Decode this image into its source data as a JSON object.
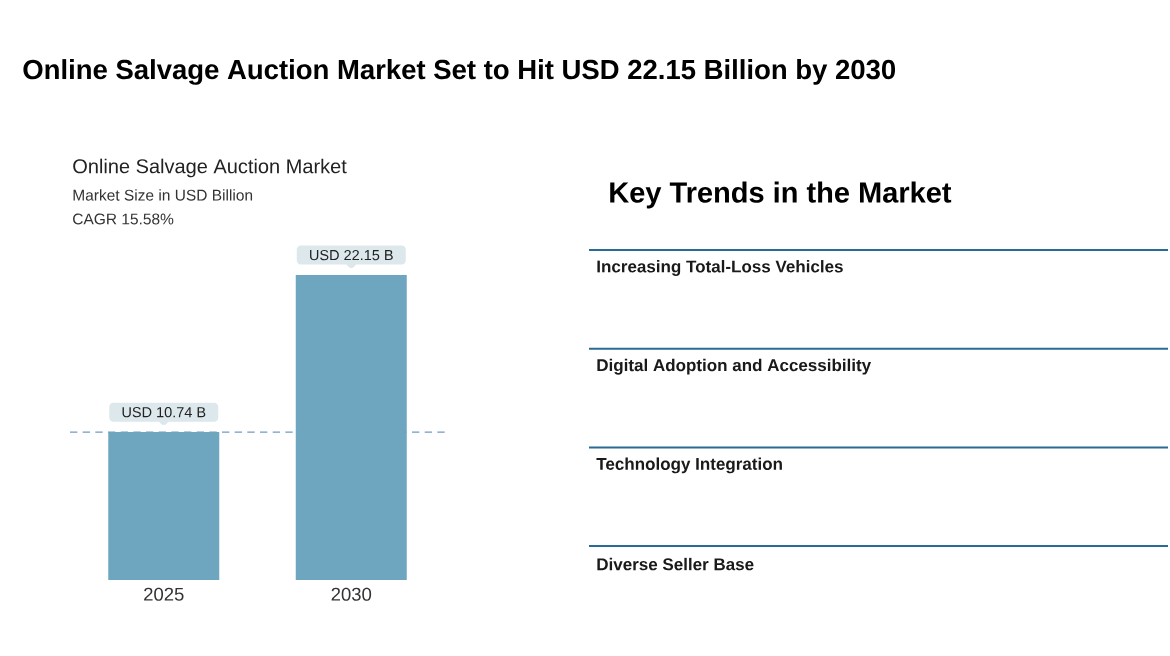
{
  "chart_data": [
    {
      "type": "bar",
      "title": "Online Salvage Auction Market Set to Hit USD 22.15 Billion by 2030",
      "subtitle": "Online Salvage Auction Market",
      "ylabel": "Market Size in USD Billion",
      "annotations": [
        "CAGR 15.58%"
      ],
      "categories": [
        "2025",
        "2030"
      ],
      "values": [
        10.74,
        22.15
      ],
      "color": "#6ea6c0",
      "value_labels": [
        "USD 10.74 B",
        "USD 22.15 B"
      ],
      "ref_lines": [
        {
          "axis": "y",
          "value": 10.74,
          "color": "#6f9bc5",
          "line_style": "dashed"
        }
      ]
    },
    {
      "type": "other",
      "title": "Key Trends in the Market",
      "annotations": [
        "Increasing Total-Loss Vehicles",
        "Digital Adoption and Accessibility",
        "Technology Integration",
        "Diverse Seller Base"
      ]
    }
  ]
}
